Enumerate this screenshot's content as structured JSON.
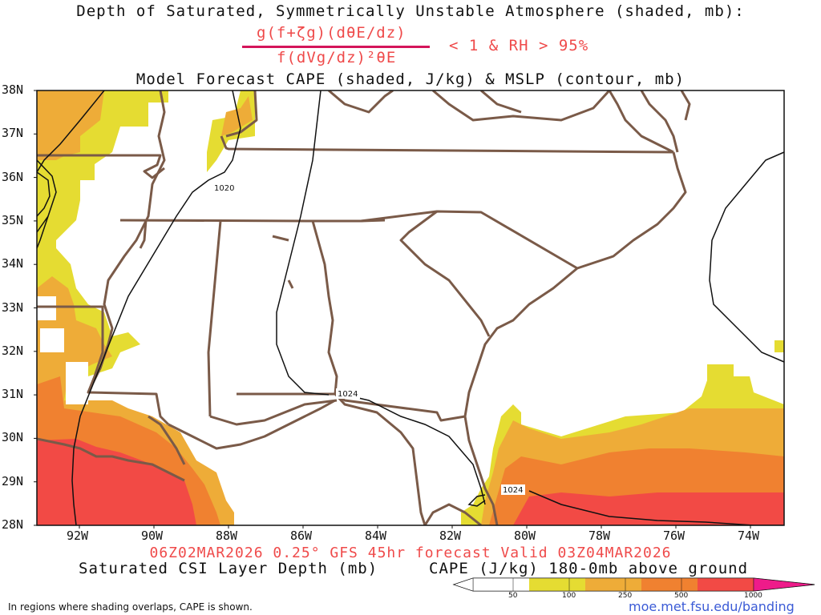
{
  "titles": {
    "line1": "Depth of Saturated, Symmetrically Unstable Atmosphere (shaded, mb):",
    "formula_numerator": "g(f+ζg)(dθE/dz)",
    "formula_denominator": "f(dVg/dz)²θE",
    "formula_condition": "< 1 & RH > 95%",
    "line3": "Model Forecast CAPE (shaded, J/kg) & MSLP (contour, mb)"
  },
  "axes": {
    "lat_labels": [
      "38N",
      "37N",
      "36N",
      "35N",
      "34N",
      "33N",
      "32N",
      "31N",
      "30N",
      "29N",
      "28N"
    ],
    "lon_labels": [
      "92W",
      "90W",
      "88W",
      "86W",
      "84W",
      "82W",
      "80W",
      "78W",
      "76W",
      "74W"
    ]
  },
  "isobars": [
    "1020",
    "1024",
    "1024"
  ],
  "valid_line": "06Z02MAR2026 0.25° GFS 45hr forecast Valid 03Z04MAR2026",
  "bottom_labels": {
    "left": "Saturated CSI Layer Depth (mb)",
    "right": "CAPE (J/kg) 180-0mb above ground"
  },
  "colorbar": {
    "ticks": [
      "50",
      "100",
      "250",
      "500",
      "1000"
    ],
    "colors": [
      "#ffffff",
      "#e5dc32",
      "#eeac38",
      "#f08130",
      "#f24a45",
      "#ee1b8a"
    ]
  },
  "footnote": "In regions where shading overlaps, CAPE is shown.",
  "url": "moe.met.fsu.edu/banding",
  "colors": {
    "state_borders": "#7a5a48",
    "isobars": "#111111",
    "cape_50": "#e5dc32",
    "cape_100": "#eeac38",
    "cape_250": "#f08130",
    "cape_500": "#f24a45"
  }
}
